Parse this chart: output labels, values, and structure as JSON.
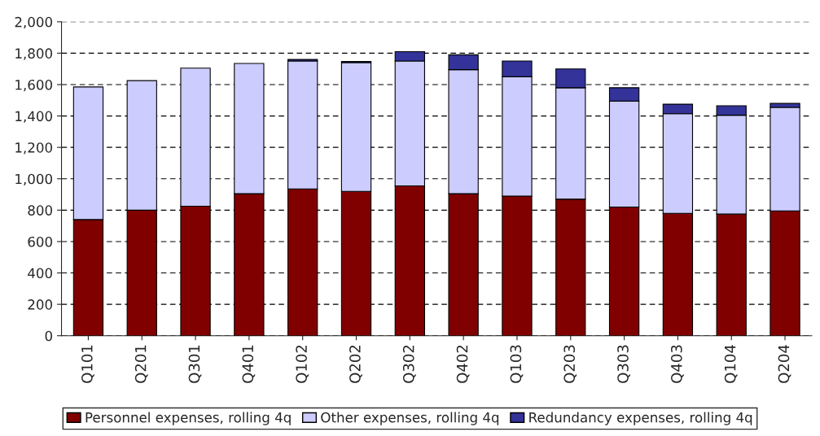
{
  "chart_data": {
    "type": "bar",
    "stacked": true,
    "categories": [
      "Q101",
      "Q201",
      "Q301",
      "Q401",
      "Q102",
      "Q202",
      "Q302",
      "Q402",
      "Q103",
      "Q203",
      "Q303",
      "Q403",
      "Q104",
      "Q204"
    ],
    "series": [
      {
        "name": "Personnel expenses, rolling 4q",
        "color": "#800000",
        "values": [
          740,
          800,
          825,
          905,
          935,
          920,
          955,
          905,
          890,
          870,
          820,
          780,
          775,
          795
        ]
      },
      {
        "name": "Other expenses, rolling 4q",
        "color": "#ccccff",
        "values": [
          845,
          825,
          880,
          830,
          815,
          820,
          795,
          790,
          760,
          710,
          675,
          635,
          630,
          660
        ]
      },
      {
        "name": "Redundancy expenses, rolling 4q",
        "color": "#333399",
        "values": [
          null,
          null,
          null,
          null,
          10,
          7,
          60,
          95,
          100,
          120,
          85,
          60,
          60,
          25
        ]
      }
    ],
    "ylim": [
      0,
      2000
    ],
    "yticks": [
      0,
      200,
      400,
      600,
      800,
      {
        "value": 1000,
        "label": "1,000"
      },
      {
        "value": 1200,
        "label": "1,200"
      },
      {
        "value": 1400,
        "label": "1,400"
      },
      {
        "value": 1600,
        "label": "1,600"
      },
      {
        "value": 1800,
        "label": "1,800"
      },
      {
        "value": 2000,
        "label": "2,000"
      }
    ],
    "grid": "y",
    "legend": "bottom"
  }
}
